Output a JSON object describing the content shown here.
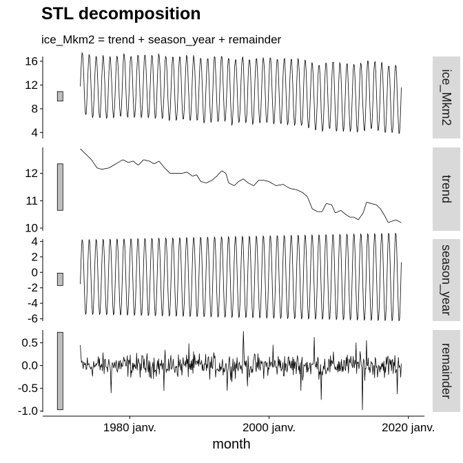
{
  "chart_data": {
    "type": "line",
    "title": "STL decomposition",
    "subtitle": "ice_Mkm2 = trend + season_year + remainder",
    "xlabel": "month",
    "x_ticks": [
      "1980 janv.",
      "2000 janv.",
      "2020 janv."
    ],
    "x_range": [
      1967.5,
      2022.3
    ],
    "data_start": 1972.9,
    "data_end": 2018.95,
    "panels": [
      {
        "name": "ice_Mkm2",
        "ylim": [
          3.0,
          16.8
        ],
        "yticks": [
          4,
          8,
          12,
          16
        ],
        "scale_bar": [
          9.3,
          10.9
        ],
        "season": {
          "amplitude_start": 5.2,
          "amplitude_end": 5.9,
          "peak_phase": 0.18
        },
        "trend_points": [
          [
            1972.9,
            12.9
          ],
          [
            1974.5,
            12.4
          ],
          [
            1976.0,
            12.1
          ],
          [
            1978.0,
            12.3
          ],
          [
            1979.5,
            12.5
          ],
          [
            1981.0,
            12.4
          ],
          [
            1982.5,
            12.5
          ],
          [
            1984.0,
            12.3
          ],
          [
            1985.5,
            12.0
          ],
          [
            1987.5,
            12.0
          ],
          [
            1989.0,
            11.9
          ],
          [
            1990.5,
            11.6
          ],
          [
            1992.5,
            11.9
          ],
          [
            1993.5,
            12.2
          ],
          [
            1995.0,
            11.6
          ],
          [
            1996.5,
            11.8
          ],
          [
            1998.5,
            11.6
          ],
          [
            2000.0,
            11.7
          ],
          [
            2002.0,
            11.5
          ],
          [
            2004.0,
            11.3
          ],
          [
            2005.5,
            11.1
          ],
          [
            2006.5,
            10.8
          ],
          [
            2008.0,
            10.9
          ],
          [
            2009.5,
            10.6
          ],
          [
            2010.5,
            10.7
          ],
          [
            2012.0,
            10.4
          ],
          [
            2013.0,
            10.5
          ],
          [
            2014.0,
            10.9
          ],
          [
            2015.5,
            10.8
          ],
          [
            2016.5,
            10.4
          ],
          [
            2017.0,
            10.2
          ],
          [
            2018.95,
            10.2
          ]
        ],
        "remainder_amplitude": 0.35
      },
      {
        "name": "trend",
        "ylim": [
          9.9,
          12.95
        ],
        "yticks": [
          10,
          11,
          12
        ],
        "scale_bar": [
          10.65,
          12.35
        ],
        "points": [
          [
            1972.9,
            12.9
          ],
          [
            1973.5,
            12.75
          ],
          [
            1974.5,
            12.5
          ],
          [
            1975.3,
            12.2
          ],
          [
            1976.0,
            12.15
          ],
          [
            1977.0,
            12.2
          ],
          [
            1978.0,
            12.35
          ],
          [
            1979.0,
            12.5
          ],
          [
            1979.8,
            12.4
          ],
          [
            1980.5,
            12.45
          ],
          [
            1981.2,
            12.3
          ],
          [
            1982.0,
            12.5
          ],
          [
            1982.8,
            12.45
          ],
          [
            1983.5,
            12.35
          ],
          [
            1984.2,
            12.45
          ],
          [
            1985.0,
            12.2
          ],
          [
            1985.8,
            12.0
          ],
          [
            1986.5,
            12.0
          ],
          [
            1987.5,
            12.0
          ],
          [
            1988.2,
            12.05
          ],
          [
            1989.0,
            11.9
          ],
          [
            1989.6,
            11.95
          ],
          [
            1990.2,
            11.7
          ],
          [
            1991.0,
            11.65
          ],
          [
            1991.8,
            11.75
          ],
          [
            1992.5,
            11.9
          ],
          [
            1993.2,
            12.1
          ],
          [
            1993.8,
            12.0
          ],
          [
            1994.2,
            11.65
          ],
          [
            1995.0,
            11.55
          ],
          [
            1995.6,
            11.7
          ],
          [
            1996.3,
            11.8
          ],
          [
            1997.0,
            11.65
          ],
          [
            1997.8,
            11.55
          ],
          [
            1998.5,
            11.75
          ],
          [
            1999.2,
            11.75
          ],
          [
            2000.0,
            11.7
          ],
          [
            2001.0,
            11.55
          ],
          [
            2002.0,
            11.6
          ],
          [
            2003.0,
            11.45
          ],
          [
            2004.0,
            11.4
          ],
          [
            2004.8,
            11.3
          ],
          [
            2005.5,
            11.15
          ],
          [
            2006.2,
            10.7
          ],
          [
            2007.0,
            10.6
          ],
          [
            2007.6,
            10.6
          ],
          [
            2008.2,
            10.9
          ],
          [
            2009.0,
            10.85
          ],
          [
            2009.5,
            10.55
          ],
          [
            2010.3,
            10.65
          ],
          [
            2011.0,
            10.5
          ],
          [
            2011.6,
            10.4
          ],
          [
            2012.2,
            10.4
          ],
          [
            2012.8,
            10.3
          ],
          [
            2013.5,
            10.55
          ],
          [
            2014.0,
            10.95
          ],
          [
            2014.6,
            10.9
          ],
          [
            2015.4,
            10.85
          ],
          [
            2016.0,
            10.7
          ],
          [
            2016.6,
            10.45
          ],
          [
            2017.1,
            10.2
          ],
          [
            2017.6,
            10.25
          ],
          [
            2018.2,
            10.3
          ],
          [
            2018.95,
            10.2
          ]
        ]
      },
      {
        "name": "season_year",
        "ylim": [
          -6.3,
          4.3
        ],
        "yticks": [
          -6,
          -4,
          -2,
          0,
          2,
          4
        ],
        "scale_bar": [
          -1.7,
          -0.1
        ],
        "amplitude_start": 4.9,
        "amplitude_end": 5.8,
        "offset": -0.6,
        "peak_phase": 0.18
      },
      {
        "name": "remainder",
        "ylim": [
          -1.02,
          0.78
        ],
        "yticks": [
          -1.0,
          -0.5,
          0.0,
          0.5
        ],
        "scale_bar": [
          -0.97,
          0.73
        ],
        "typical_amplitude": 0.28,
        "spikes": [
          [
            1972.9,
            0.45
          ],
          [
            1977.3,
            -0.6
          ],
          [
            1984.9,
            -0.55
          ],
          [
            1988.5,
            0.48
          ],
          [
            1994.0,
            -0.55
          ],
          [
            1996.3,
            0.75
          ],
          [
            1996.9,
            -0.45
          ],
          [
            2000.6,
            0.45
          ],
          [
            2004.6,
            -0.55
          ],
          [
            2006.5,
            0.62
          ],
          [
            2007.5,
            -0.75
          ],
          [
            2012.5,
            0.5
          ],
          [
            2013.4,
            -0.97
          ],
          [
            2014.0,
            0.55
          ],
          [
            2018.4,
            -0.62
          ]
        ]
      }
    ]
  }
}
